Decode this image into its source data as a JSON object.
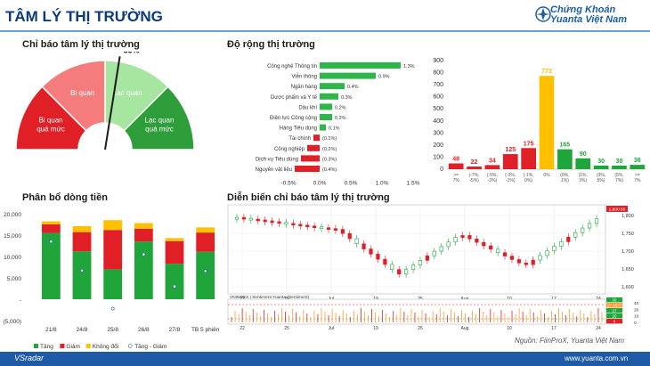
{
  "header": {
    "title": "TÂM LÝ THỊ TRƯỜNG",
    "logo_line1": "Chứng Khoán",
    "logo_line2": "Yuanta Việt Nam"
  },
  "sections": {
    "gauge_title": "Chỉ báo tâm lý thị trường",
    "breadth_title": "Độ rộng thị trường",
    "flow_title": "Phân bổ dòng tiền",
    "trend_title": "Diễn biến chỉ báo tâm lý thị trường"
  },
  "footer": {
    "source": "Nguồn: FiinProX, Yuanta Việt Nam",
    "left": "VSradar",
    "right": "www.yuanta.com.vn"
  },
  "chart_data": [
    {
      "type": "gauge",
      "value": 55,
      "value_label": "55%",
      "segments": [
        {
          "label": "Bi quan quá mức",
          "color": "#e01f26"
        },
        {
          "label": "Bi quan",
          "color": "#f47c7c"
        },
        {
          "label": "Lạc quan",
          "color": "#a6e6a0"
        },
        {
          "label": "Lạc quan quá mức",
          "color": "#2e9e3a"
        }
      ]
    },
    {
      "type": "bar",
      "orientation": "horizontal",
      "categories": [
        "Công nghệ Thông tin",
        "Viễn thông",
        "Ngân hàng",
        "Dược phẩm và Y tế",
        "Dầu khí",
        "Điện lực Công cộng",
        "Hàng Tiêu dùng",
        "Tài chính",
        "Công nghiệp",
        "Dịch vụ Tiêu dùng",
        "Nguyên vật liệu"
      ],
      "values": [
        1.3,
        0.9,
        0.4,
        0.3,
        0.2,
        0.2,
        0.1,
        -0.1,
        -0.2,
        -0.3,
        -0.4
      ],
      "value_labels": [
        "1.3%",
        "0.9%",
        "0.4%",
        "0.3%",
        "0.2%",
        "0.2%",
        "0.1%",
        "(0.1%)",
        "(0.2%)",
        "(0.3%)",
        "(0.4%)"
      ],
      "xlim": [
        -0.5,
        1.5
      ],
      "xticks": [
        "-0.5%",
        "0.0%",
        "0.5%",
        "1.0%",
        "1.5%"
      ]
    },
    {
      "type": "bar",
      "categories": [
        ">= 7%",
        "(-7%, -5%)",
        "(-5%, -3%)",
        "(-3%, -1%)",
        "(-1%, 0%)",
        "0%",
        "(0%, 1%)",
        "(1%, 3%)",
        "(3%, 5%)",
        "(5%, 7%)",
        ">= 7%"
      ],
      "values": [
        48,
        22,
        34,
        125,
        175,
        773,
        165,
        90,
        30,
        30,
        36
      ],
      "colors": [
        "#e01f26",
        "#e01f26",
        "#e01f26",
        "#e01f26",
        "#e01f26",
        "#ffc000",
        "#1fa53a",
        "#1fa53a",
        "#1fa53a",
        "#1fa53a",
        "#1fa53a"
      ],
      "ylim": [
        0,
        900
      ],
      "yticks": [
        0,
        100,
        200,
        300,
        400,
        500,
        600,
        700,
        800,
        900
      ]
    },
    {
      "type": "bar",
      "stacked": true,
      "categories": [
        "21/8",
        "24/8",
        "25/8",
        "26/8",
        "27/8",
        "TB 5 phiên"
      ],
      "series": [
        {
          "name": "Tăng",
          "color": "#1fa53a",
          "values": [
            15500,
            11200,
            7000,
            13500,
            8300,
            11100
          ]
        },
        {
          "name": "Giảm",
          "color": "#e01f26",
          "values": [
            2000,
            4500,
            9200,
            3000,
            5300,
            4500
          ]
        },
        {
          "name": "Không đổi",
          "color": "#ffc000",
          "values": [
            700,
            1400,
            2300,
            1300,
            700,
            1200
          ]
        }
      ],
      "net_series": {
        "name": "Tăng - Giảm",
        "values": [
          13500,
          6700,
          -2200,
          10500,
          3000,
          6600
        ]
      },
      "ylim": [
        -5000,
        20000
      ],
      "yticks": [
        "(5,000)",
        "-",
        "5,000",
        "10,000",
        "15,000",
        "20,000"
      ]
    },
    {
      "type": "line",
      "xticks": [
        "22",
        "25",
        "Jul",
        "19",
        "25",
        "Aug",
        "10",
        "17",
        "24"
      ],
      "yticks": [
        "1,600",
        "1,650",
        "1,700",
        "1,750",
        "1,800"
      ],
      "last_value_label": "1,800.50",
      "lower_panel_label": "VNINDEX | Sentiment Yuanta (Sentiment)",
      "lower_yticks": [
        "40",
        "20",
        "10",
        "0"
      ],
      "lower_badges": [
        "30",
        "27.3677",
        "37",
        "20",
        "0"
      ]
    }
  ]
}
